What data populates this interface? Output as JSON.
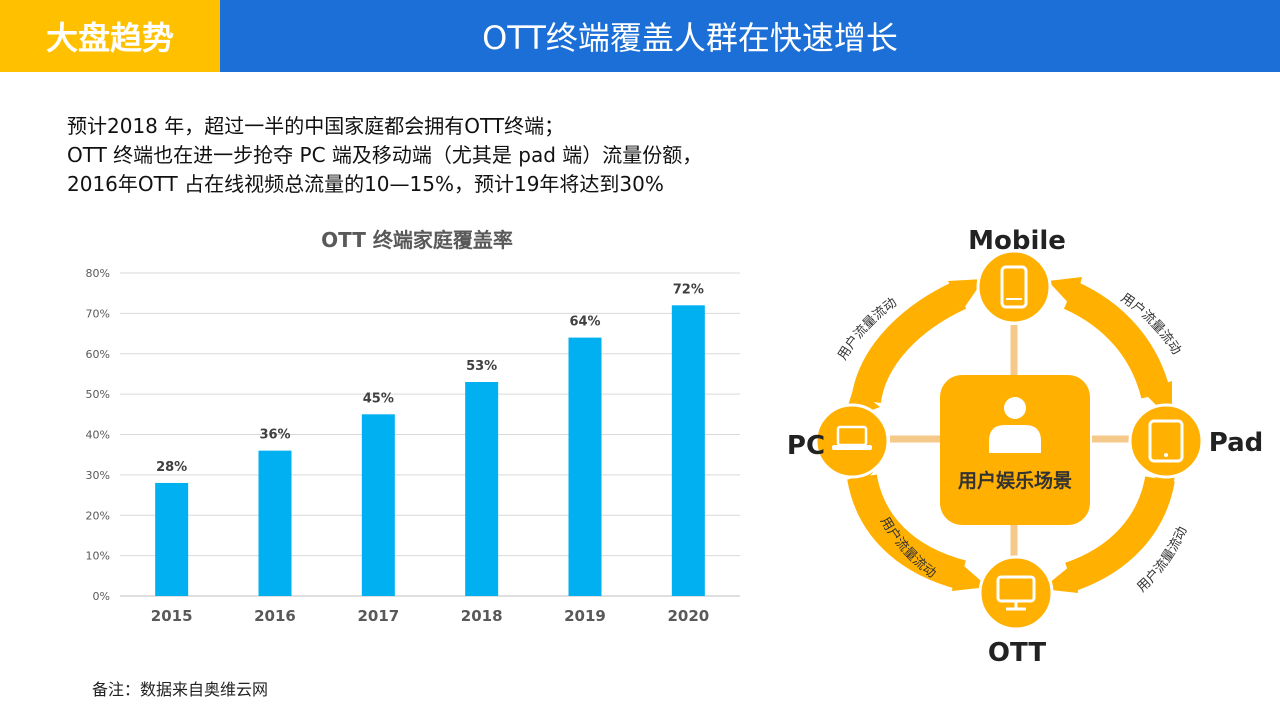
{
  "header": {
    "tag": "大盘趋势",
    "title": "OTT终端覆盖人群在快速增长"
  },
  "intro": {
    "lines": [
      "预计2018 年，超过一半的中国家庭都会拥有OTT终端；",
      "OTT 终端也在进一步抢夺 PC 端及移动端（尤其是 pad 端）流量份额，",
      "2016年OTT 占在线视频总流量的10—15%，预计19年将达到30%"
    ]
  },
  "chart_data": {
    "type": "bar",
    "title": "OTT 终端家庭覆盖率",
    "xlabel": "",
    "ylabel": "",
    "categories": [
      "2015",
      "2016",
      "2017",
      "2018",
      "2019",
      "2020"
    ],
    "values": [
      28,
      36,
      45,
      53,
      64,
      72
    ],
    "data_labels": [
      "28%",
      "36%",
      "45%",
      "53%",
      "64%",
      "72%"
    ],
    "y_ticks": [
      "0%",
      "10%",
      "20%",
      "30%",
      "40%",
      "50%",
      "60%",
      "70%",
      "80%"
    ],
    "ylim": [
      0,
      80
    ],
    "grid": true,
    "legend": "none",
    "bar_color": "#00B0F0"
  },
  "diagram": {
    "center_label": "用户娱乐场景",
    "nodes": {
      "mobile": "Mobile",
      "pc": "PC",
      "pad": "Pad",
      "ott": "OTT"
    },
    "flow_label": "用户流量流动",
    "colors": {
      "primary": "#FFB000",
      "connector": "#F5C98A"
    },
    "icons": {
      "center": "user-icon",
      "mobile": "smartphone-icon",
      "pc": "laptop-icon",
      "pad": "tablet-icon",
      "ott": "tv-icon"
    }
  },
  "note": "备注：数据来自奥维云网"
}
